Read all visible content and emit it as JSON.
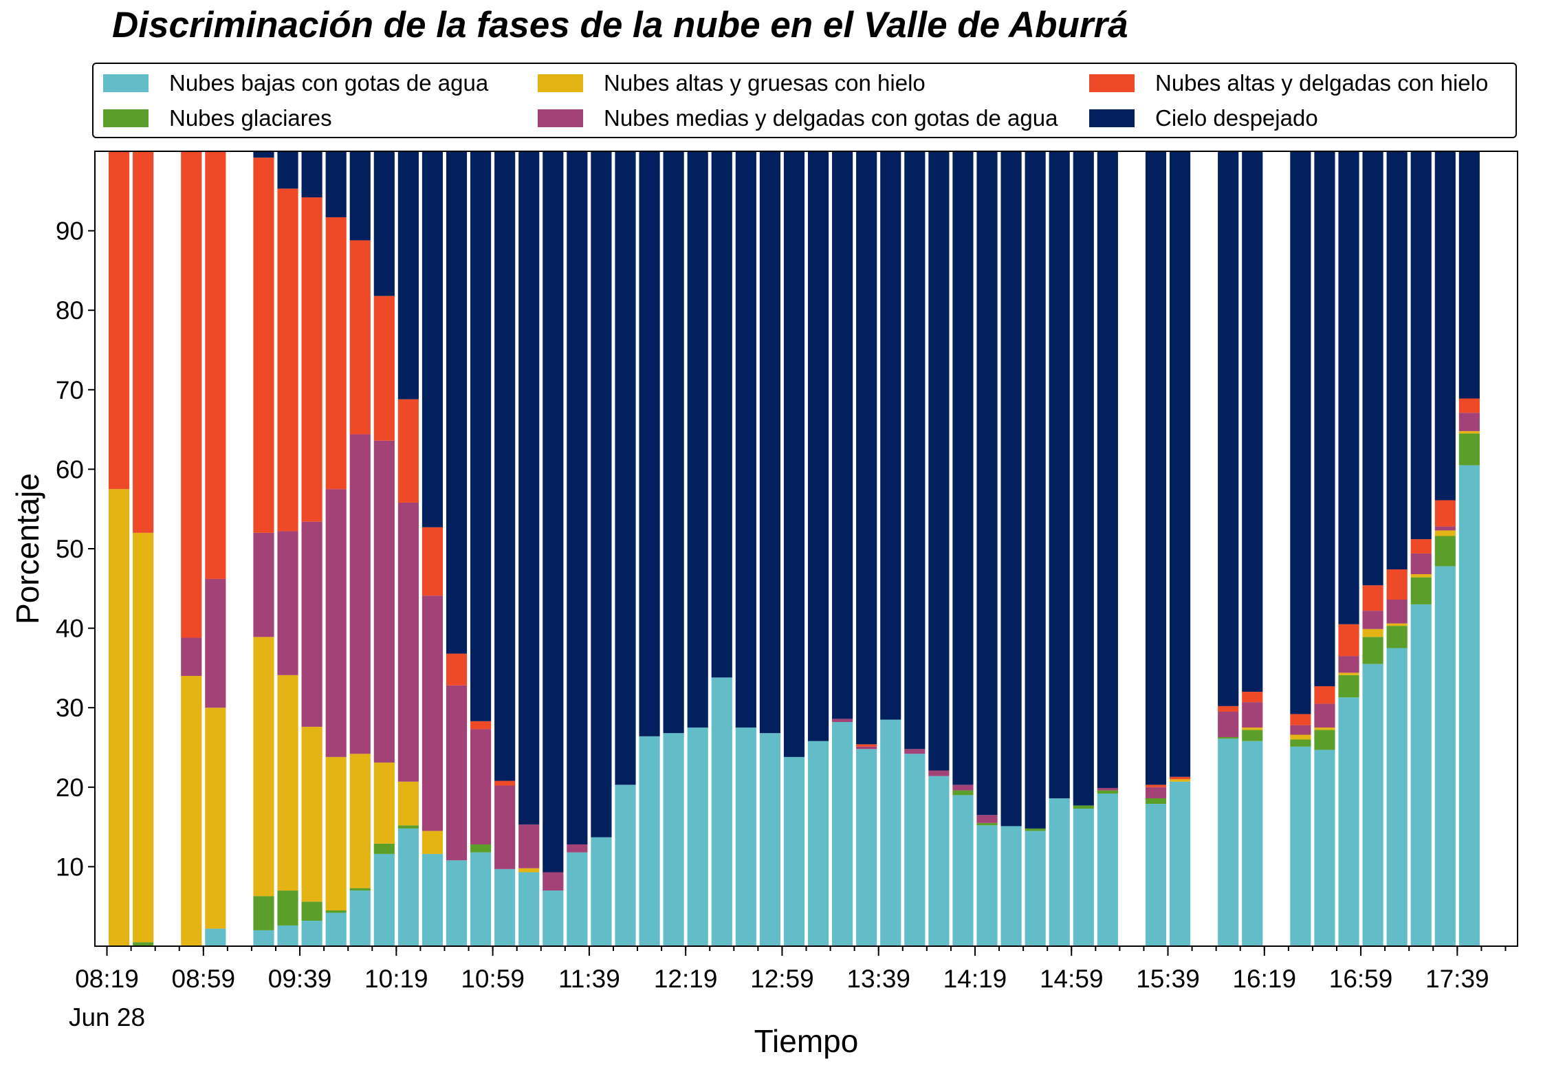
{
  "chart_data": {
    "type": "bar",
    "stacked": true,
    "title": "Discriminación de la fases de la nube en el Valle de Aburrá",
    "xlabel": "Tiempo",
    "ylabel": "Porcentaje",
    "ylim": [
      0,
      100
    ],
    "xlim": [
      0,
      59
    ],
    "legend_position": "top",
    "grid": false,
    "yticks": [
      10,
      20,
      30,
      40,
      50,
      60,
      70,
      80,
      90
    ],
    "xticks": [
      {
        "pos": 0.5,
        "label": "08:19",
        "sublabel": "Jun 28"
      },
      {
        "pos": 4.5,
        "label": "08:59"
      },
      {
        "pos": 8.5,
        "label": "09:39"
      },
      {
        "pos": 12.5,
        "label": "10:19"
      },
      {
        "pos": 16.5,
        "label": "10:59"
      },
      {
        "pos": 20.5,
        "label": "11:39"
      },
      {
        "pos": 24.5,
        "label": "12:19"
      },
      {
        "pos": 28.5,
        "label": "12:59"
      },
      {
        "pos": 32.5,
        "label": "13:39"
      },
      {
        "pos": 36.5,
        "label": "14:19"
      },
      {
        "pos": 40.5,
        "label": "14:59"
      },
      {
        "pos": 44.5,
        "label": "15:39"
      },
      {
        "pos": 48.5,
        "label": "16:19"
      },
      {
        "pos": 52.5,
        "label": "16:59"
      },
      {
        "pos": 56.5,
        "label": "17:39"
      }
    ],
    "minor_tick_step": 1,
    "series": [
      {
        "name": "Nubes bajas con gotas de agua",
        "color": "#63bdc9"
      },
      {
        "name": "Nubes glaciares",
        "color": "#5c9e2a"
      },
      {
        "name": "Nubes altas y gruesas con hielo",
        "color": "#e3b414"
      },
      {
        "name": "Nubes medias y delgadas con gotas de agua",
        "color": "#a34277"
      },
      {
        "name": "Nubes altas y delgadas con hielo",
        "color": "#ee4a28"
      },
      {
        "name": "Cielo despejado",
        "color": "#03205e"
      }
    ],
    "bars": [
      {
        "x": 1,
        "values": [
          0,
          0,
          57.5,
          0,
          42.5,
          0
        ]
      },
      {
        "x": 2,
        "values": [
          0,
          0.5,
          51.5,
          0,
          48,
          0
        ]
      },
      {
        "x": 4,
        "values": [
          0,
          0,
          34,
          4.8,
          61.2,
          0
        ]
      },
      {
        "x": 5,
        "values": [
          2.2,
          0,
          27.8,
          16.2,
          53.8,
          0
        ]
      },
      {
        "x": 7,
        "values": [
          2,
          4.3,
          32.6,
          13.1,
          47.2,
          0.8
        ]
      },
      {
        "x": 8,
        "values": [
          2.6,
          4.4,
          27.1,
          18.1,
          43.1,
          4.7
        ]
      },
      {
        "x": 9,
        "values": [
          3.2,
          2.4,
          22,
          25.8,
          40.8,
          5.8
        ]
      },
      {
        "x": 10,
        "values": [
          4.2,
          0.3,
          19.3,
          33.7,
          34.2,
          8.3
        ]
      },
      {
        "x": 11,
        "values": [
          7,
          0.3,
          16.9,
          40.2,
          24.4,
          11.2
        ]
      },
      {
        "x": 12,
        "values": [
          11.6,
          1.3,
          10.2,
          40.5,
          18.2,
          18.2
        ]
      },
      {
        "x": 13,
        "values": [
          14.8,
          0.4,
          5.5,
          35.1,
          13,
          31.2
        ]
      },
      {
        "x": 14,
        "values": [
          11.6,
          0,
          2.9,
          29.6,
          8.6,
          47.3
        ]
      },
      {
        "x": 15,
        "values": [
          10.8,
          0,
          0,
          22,
          4,
          63.2
        ]
      },
      {
        "x": 16,
        "values": [
          11.8,
          1,
          0,
          14.5,
          1,
          71.7
        ]
      },
      {
        "x": 17,
        "values": [
          9.7,
          0,
          0,
          10.5,
          0.6,
          79.2
        ]
      },
      {
        "x": 18,
        "values": [
          9.3,
          0,
          0.5,
          5.5,
          0,
          84.7
        ]
      },
      {
        "x": 19,
        "values": [
          7,
          0,
          0,
          2.3,
          0,
          90.7
        ]
      },
      {
        "x": 20,
        "values": [
          11.8,
          0,
          0,
          1,
          0,
          87.2
        ]
      },
      {
        "x": 21,
        "values": [
          13.7,
          0,
          0,
          0,
          0,
          86.3
        ]
      },
      {
        "x": 22,
        "values": [
          20.3,
          0,
          0,
          0,
          0,
          79.7
        ]
      },
      {
        "x": 23,
        "values": [
          26.4,
          0,
          0,
          0,
          0,
          73.6
        ]
      },
      {
        "x": 24,
        "values": [
          26.8,
          0,
          0,
          0,
          0,
          73.2
        ]
      },
      {
        "x": 25,
        "values": [
          27.5,
          0,
          0,
          0,
          0,
          72.5
        ]
      },
      {
        "x": 26,
        "values": [
          33.8,
          0,
          0,
          0,
          0,
          66.2
        ]
      },
      {
        "x": 27,
        "values": [
          27.5,
          0,
          0,
          0,
          0,
          72.5
        ]
      },
      {
        "x": 28,
        "values": [
          26.8,
          0,
          0,
          0,
          0,
          73.2
        ]
      },
      {
        "x": 29,
        "values": [
          23.8,
          0,
          0,
          0,
          0,
          76.2
        ]
      },
      {
        "x": 30,
        "values": [
          25.8,
          0,
          0,
          0,
          0,
          74.2
        ]
      },
      {
        "x": 31,
        "values": [
          28.2,
          0,
          0,
          0.4,
          0,
          71.4
        ]
      },
      {
        "x": 32,
        "values": [
          24.8,
          0,
          0,
          0.3,
          0.3,
          74.6
        ]
      },
      {
        "x": 33,
        "values": [
          28.5,
          0,
          0,
          0,
          0,
          71.5
        ]
      },
      {
        "x": 34,
        "values": [
          24.2,
          0,
          0,
          0.6,
          0,
          75.2
        ]
      },
      {
        "x": 35,
        "values": [
          21.4,
          0,
          0,
          0.7,
          0,
          77.9
        ]
      },
      {
        "x": 36,
        "values": [
          19,
          0.6,
          0,
          0.7,
          0,
          79.7
        ]
      },
      {
        "x": 37,
        "values": [
          15.2,
          0.3,
          0,
          1,
          0,
          83.5
        ]
      },
      {
        "x": 38,
        "values": [
          15.1,
          0,
          0,
          0,
          0,
          84.9
        ]
      },
      {
        "x": 39,
        "values": [
          14.5,
          0.3,
          0,
          0,
          0,
          85.2
        ]
      },
      {
        "x": 40,
        "values": [
          18.6,
          0,
          0,
          0,
          0,
          81.4
        ]
      },
      {
        "x": 41,
        "values": [
          17.3,
          0.4,
          0,
          0,
          0,
          82.3
        ]
      },
      {
        "x": 42,
        "values": [
          19.2,
          0.4,
          0,
          0.3,
          0,
          80.1
        ]
      },
      {
        "x": 44,
        "values": [
          17.9,
          0.7,
          0,
          1.4,
          0.3,
          79.7
        ]
      },
      {
        "x": 45,
        "values": [
          20.7,
          0,
          0.3,
          0,
          0.3,
          78.7
        ]
      },
      {
        "x": 47,
        "values": [
          26.1,
          0.2,
          0,
          3.2,
          0.7,
          69.8
        ]
      },
      {
        "x": 48,
        "values": [
          25.8,
          1.4,
          0.3,
          3.2,
          1.3,
          68
        ]
      },
      {
        "x": 50,
        "values": [
          25.1,
          0.9,
          0.6,
          1.2,
          1.4,
          70.8
        ]
      },
      {
        "x": 51,
        "values": [
          24.7,
          2.5,
          0.3,
          3,
          2.2,
          67.3
        ]
      },
      {
        "x": 52,
        "values": [
          31.3,
          2.8,
          0.3,
          2.1,
          4,
          59.5
        ]
      },
      {
        "x": 53,
        "values": [
          35.5,
          3.4,
          1,
          2.3,
          3.2,
          54.6
        ]
      },
      {
        "x": 54,
        "values": [
          37.5,
          2.8,
          0.3,
          3,
          3.8,
          52.6
        ]
      },
      {
        "x": 55,
        "values": [
          43,
          3.4,
          0.4,
          2.6,
          1.8,
          48.8
        ]
      },
      {
        "x": 56,
        "values": [
          47.8,
          3.8,
          0.7,
          0.5,
          3.3,
          43.9
        ]
      },
      {
        "x": 57,
        "values": [
          60.5,
          4,
          0.3,
          2.3,
          1.8,
          31.1
        ]
      }
    ]
  }
}
